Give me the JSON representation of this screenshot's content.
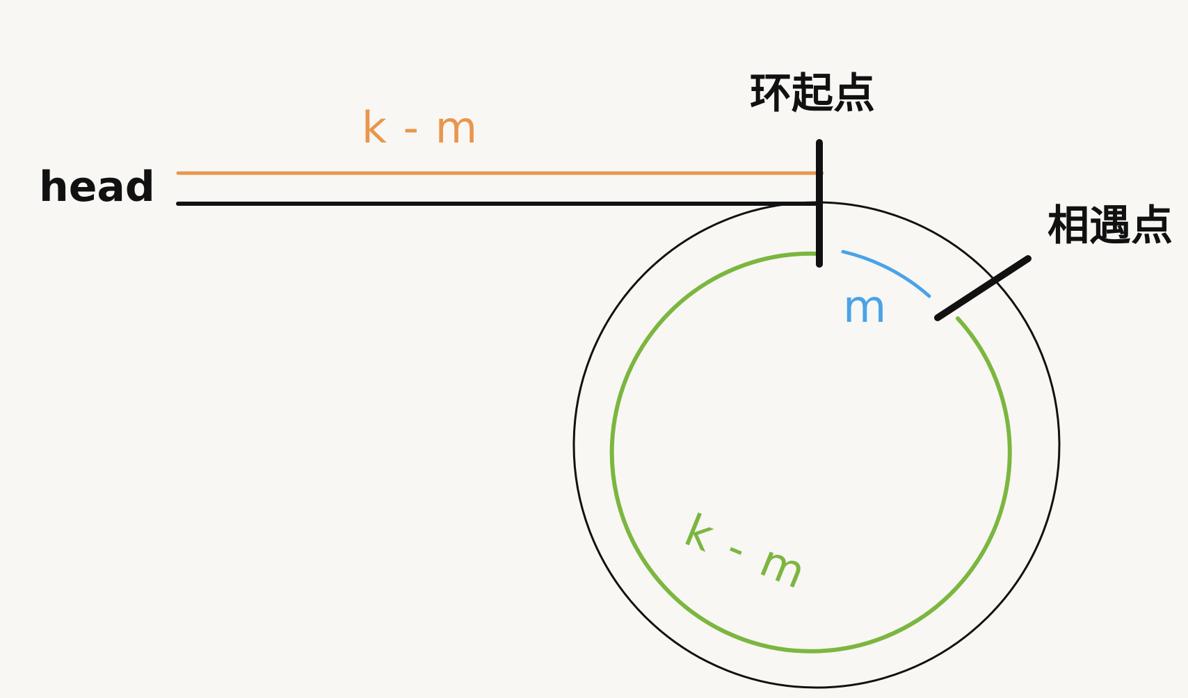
{
  "labels": {
    "head": "head",
    "prefix_distance": "k - m",
    "cycle_start": "环起点",
    "meet_point": "相遇点",
    "arc_m": "m",
    "arc_k_minus_m": "k - m"
  },
  "colors": {
    "background": "#f8f7f3",
    "ink": "#111111",
    "orange": "#e8964d",
    "green": "#7cb640",
    "blue": "#4aa3e8"
  }
}
